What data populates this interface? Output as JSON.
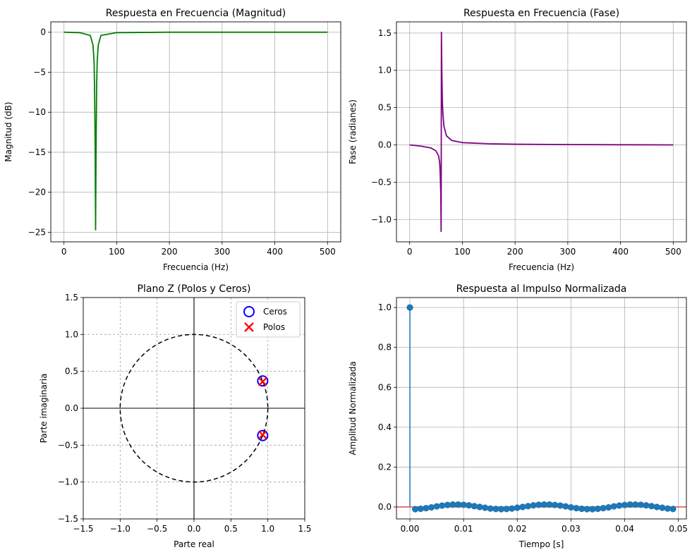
{
  "chart_data": [
    {
      "type": "line",
      "title": "Respuesta en Frecuencia (Magnitud)",
      "xlabel": "Frecuencia (Hz)",
      "ylabel": "Magnitud (dB)",
      "xlim": [
        -25,
        525
      ],
      "ylim": [
        -26.2,
        1.3
      ],
      "xticks": [
        0,
        100,
        200,
        300,
        400,
        500
      ],
      "yticks": [
        0,
        -5,
        -10,
        -15,
        -20,
        -25
      ],
      "grid": true,
      "color": "#008000",
      "series": [
        {
          "x": [
            0,
            30,
            50,
            55,
            57,
            58,
            59,
            59.5,
            60,
            60.5,
            61,
            62,
            63,
            65,
            70,
            100,
            200,
            300,
            400,
            500
          ],
          "y": [
            0,
            -0.05,
            -0.4,
            -1.6,
            -3.6,
            -6.6,
            -13.2,
            -18.5,
            -24.7,
            -18.5,
            -13.2,
            -6.6,
            -3.6,
            -1.6,
            -0.4,
            -0.05,
            0,
            0,
            0,
            0
          ]
        }
      ]
    },
    {
      "type": "line",
      "title": "Respuesta en Frecuencia (Fase)",
      "xlabel": "Frecuencia (Hz)",
      "ylabel": "Fase (radianes)",
      "xlim": [
        -25,
        525
      ],
      "ylim": [
        -1.3,
        1.65
      ],
      "xticks": [
        0,
        100,
        200,
        300,
        400,
        500
      ],
      "yticks": [
        -1.0,
        -0.5,
        0.0,
        0.5,
        1.0,
        1.5
      ],
      "grid": true,
      "color": "#800080",
      "series": [
        {
          "x": [
            0,
            20,
            40,
            50,
            55,
            57,
            58,
            59,
            59.7,
            60,
            60.3,
            61,
            62,
            63,
            65,
            70,
            80,
            100,
            150,
            200,
            300,
            400,
            500
          ],
          "y": [
            0,
            -0.015,
            -0.04,
            -0.08,
            -0.15,
            -0.25,
            -0.38,
            -0.65,
            -1.16,
            0,
            1.51,
            1.0,
            0.6,
            0.42,
            0.25,
            0.12,
            0.06,
            0.03,
            0.015,
            0.01,
            0.005,
            0.002,
            0
          ]
        }
      ]
    },
    {
      "type": "scatter",
      "title": "Plano Z (Polos y Ceros)",
      "xlabel": "Parte real",
      "ylabel": "Parte imaginaria",
      "xlim": [
        -1.5,
        1.5
      ],
      "ylim": [
        -1.5,
        1.5
      ],
      "xticks": [
        -1.5,
        -1.0,
        -0.5,
        0.0,
        0.5,
        1.0,
        1.5
      ],
      "yticks": [
        -1.5,
        -1.0,
        -0.5,
        0.0,
        0.5,
        1.0,
        1.5
      ],
      "grid": true,
      "legend_position": "top-right",
      "series": [
        {
          "name": "Ceros",
          "marker": "circle",
          "color": "#0000ff",
          "x": [
            0.93,
            0.93
          ],
          "y": [
            0.37,
            -0.37
          ]
        },
        {
          "name": "Polos",
          "marker": "x",
          "color": "#ff0000",
          "x": [
            0.93,
            0.93
          ],
          "y": [
            0.36,
            -0.36
          ]
        }
      ]
    },
    {
      "type": "stem",
      "title": "Respuesta al Impulso Normalizada",
      "xlabel": "Tiempo [s]",
      "ylabel": "Amplitud Normalizada",
      "xlim": [
        -0.0025,
        0.0515
      ],
      "ylim": [
        -0.06,
        1.05
      ],
      "xticks": [
        0.0,
        0.01,
        0.02,
        0.03,
        0.04,
        0.05
      ],
      "yticks": [
        0.0,
        0.2,
        0.4,
        0.6,
        0.8,
        1.0
      ],
      "grid": true,
      "color": "#1f77b4",
      "series": [
        {
          "x": [
            0,
            0.001,
            0.002,
            0.003,
            0.004,
            0.005,
            0.006,
            0.007,
            0.008,
            0.009,
            0.01,
            0.011,
            0.012,
            0.013,
            0.014,
            0.015,
            0.016,
            0.017,
            0.018,
            0.019,
            0.02,
            0.021,
            0.022,
            0.023,
            0.024,
            0.025,
            0.026,
            0.027,
            0.028,
            0.029,
            0.03,
            0.031,
            0.032,
            0.033,
            0.034,
            0.035,
            0.036,
            0.037,
            0.038,
            0.039,
            0.04,
            0.041,
            0.042,
            0.043,
            0.044,
            0.045,
            0.046,
            0.047,
            0.048,
            0.049
          ],
          "y": [
            1.0,
            -0.011,
            -0.009,
            -0.006,
            -0.002,
            0.003,
            0.007,
            0.01,
            0.012,
            0.012,
            0.011,
            0.008,
            0.004,
            0.0,
            -0.004,
            -0.008,
            -0.01,
            -0.011,
            -0.01,
            -0.008,
            -0.004,
            0.0,
            0.004,
            0.008,
            0.011,
            0.012,
            0.012,
            0.01,
            0.007,
            0.003,
            -0.002,
            -0.006,
            -0.009,
            -0.011,
            -0.011,
            -0.009,
            -0.006,
            -0.002,
            0.003,
            0.007,
            0.01,
            0.012,
            0.012,
            0.011,
            0.008,
            0.004,
            0.0,
            -0.004,
            -0.008,
            -0.01
          ]
        }
      ]
    }
  ]
}
